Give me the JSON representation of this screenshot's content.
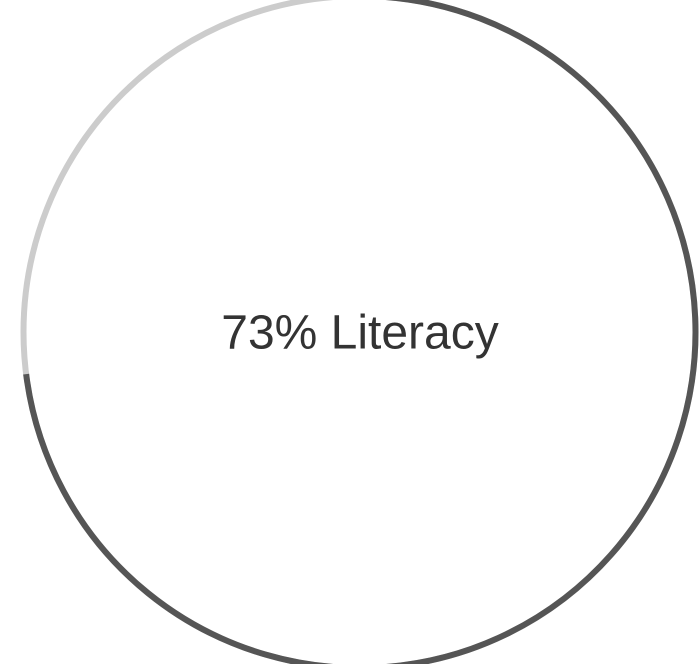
{
  "chart_data": {
    "type": "progress-ring",
    "values": [
      73
    ],
    "value_labels": [
      "73% Literacy"
    ],
    "ylim": [
      0,
      100
    ],
    "color": "#555555",
    "track_color": "#cccccc"
  }
}
